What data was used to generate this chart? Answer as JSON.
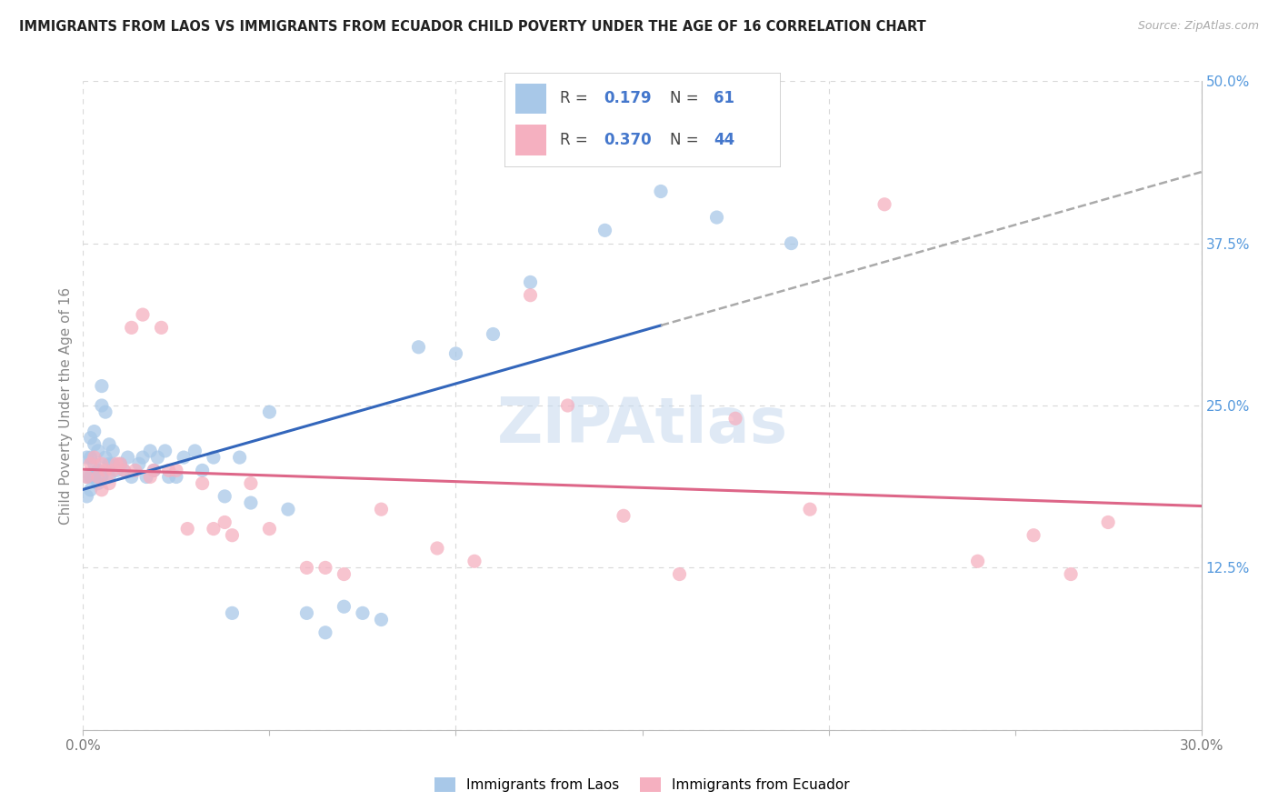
{
  "title": "IMMIGRANTS FROM LAOS VS IMMIGRANTS FROM ECUADOR CHILD POVERTY UNDER THE AGE OF 16 CORRELATION CHART",
  "source": "Source: ZipAtlas.com",
  "ylabel": "Child Poverty Under the Age of 16",
  "xlim": [
    0.0,
    0.3
  ],
  "ylim": [
    0.0,
    0.5
  ],
  "laos_color": "#a8c8e8",
  "laos_line_color": "#3366bb",
  "ecuador_color": "#f5b0c0",
  "ecuador_line_color": "#dd6688",
  "laos_R": "0.179",
  "laos_N": "61",
  "ecuador_R": "0.370",
  "ecuador_N": "44",
  "watermark": "ZIPAtlas",
  "watermark_color": "#c5d8ee",
  "bg_color": "#ffffff",
  "grid_color": "#d8d8d8",
  "title_color": "#222222",
  "right_tick_color": "#5599dd",
  "legend_stat_color": "#4477cc",
  "laos_x": [
    0.001,
    0.001,
    0.001,
    0.002,
    0.002,
    0.002,
    0.002,
    0.003,
    0.003,
    0.003,
    0.003,
    0.004,
    0.004,
    0.004,
    0.005,
    0.005,
    0.005,
    0.006,
    0.006,
    0.007,
    0.007,
    0.007,
    0.008,
    0.008,
    0.009,
    0.01,
    0.011,
    0.012,
    0.013,
    0.015,
    0.016,
    0.017,
    0.018,
    0.019,
    0.02,
    0.022,
    0.023,
    0.025,
    0.027,
    0.03,
    0.032,
    0.035,
    0.038,
    0.04,
    0.042,
    0.045,
    0.05,
    0.055,
    0.06,
    0.065,
    0.07,
    0.075,
    0.08,
    0.09,
    0.1,
    0.11,
    0.12,
    0.14,
    0.155,
    0.17,
    0.19
  ],
  "laos_y": [
    0.21,
    0.195,
    0.18,
    0.225,
    0.21,
    0.195,
    0.185,
    0.23,
    0.22,
    0.205,
    0.195,
    0.215,
    0.2,
    0.19,
    0.265,
    0.25,
    0.195,
    0.245,
    0.21,
    0.22,
    0.205,
    0.195,
    0.215,
    0.205,
    0.2,
    0.205,
    0.2,
    0.21,
    0.195,
    0.205,
    0.21,
    0.195,
    0.215,
    0.2,
    0.21,
    0.215,
    0.195,
    0.195,
    0.21,
    0.215,
    0.2,
    0.21,
    0.18,
    0.09,
    0.21,
    0.175,
    0.245,
    0.17,
    0.09,
    0.075,
    0.095,
    0.09,
    0.085,
    0.295,
    0.29,
    0.305,
    0.345,
    0.385,
    0.415,
    0.395,
    0.375
  ],
  "ecuador_x": [
    0.001,
    0.002,
    0.003,
    0.004,
    0.005,
    0.005,
    0.006,
    0.007,
    0.008,
    0.009,
    0.01,
    0.011,
    0.013,
    0.014,
    0.016,
    0.018,
    0.019,
    0.021,
    0.023,
    0.025,
    0.028,
    0.032,
    0.035,
    0.038,
    0.04,
    0.045,
    0.05,
    0.06,
    0.065,
    0.07,
    0.08,
    0.095,
    0.105,
    0.12,
    0.13,
    0.145,
    0.16,
    0.175,
    0.195,
    0.215,
    0.24,
    0.255,
    0.265,
    0.275
  ],
  "ecuador_y": [
    0.195,
    0.205,
    0.21,
    0.195,
    0.185,
    0.205,
    0.2,
    0.19,
    0.2,
    0.205,
    0.205,
    0.2,
    0.31,
    0.2,
    0.32,
    0.195,
    0.2,
    0.31,
    0.2,
    0.2,
    0.155,
    0.19,
    0.155,
    0.16,
    0.15,
    0.19,
    0.155,
    0.125,
    0.125,
    0.12,
    0.17,
    0.14,
    0.13,
    0.335,
    0.25,
    0.165,
    0.12,
    0.24,
    0.17,
    0.405,
    0.13,
    0.15,
    0.12,
    0.16
  ]
}
